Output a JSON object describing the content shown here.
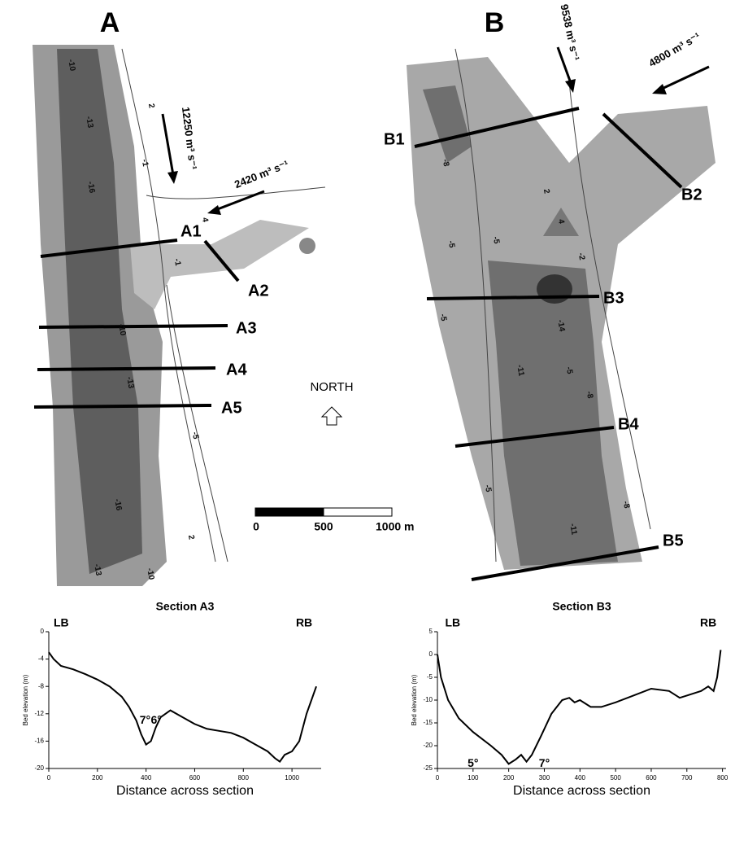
{
  "figure": {
    "map_a": {
      "panel_label": "A",
      "flows": [
        "12250 m³ s⁻¹",
        "2420 m³ s⁻¹"
      ],
      "sections": [
        "A1",
        "A2",
        "A3",
        "A4",
        "A5"
      ],
      "contour_labels": [
        "-10",
        "-13",
        "-16",
        "-1",
        "2",
        "-1",
        "4",
        "-10",
        "-13",
        "-5",
        "-16",
        "-13",
        "-10",
        "2"
      ]
    },
    "map_b": {
      "panel_label": "B",
      "flows": [
        "9538 m³ s⁻¹",
        "4800 m³ s⁻¹"
      ],
      "sections": [
        "B1",
        "B2",
        "B3",
        "B4",
        "B5"
      ],
      "contour_labels": [
        "-8",
        "-5",
        "2",
        "-5",
        "4",
        "-2",
        "-5",
        "-14",
        "-11",
        "-5",
        "-8",
        "-11",
        "-5",
        "-8"
      ]
    },
    "north": "NORTH",
    "scale": [
      "0",
      "500",
      "1000 m"
    ]
  },
  "chart_data": [
    {
      "type": "line",
      "title": "Section A3",
      "xlabel": "Distance across section",
      "ylabel": "Bed elevation (m)",
      "annotations": [
        "LB",
        "RB",
        "7°",
        "6°"
      ],
      "x": [
        0,
        20,
        50,
        100,
        150,
        200,
        250,
        300,
        330,
        360,
        380,
        400,
        420,
        440,
        460,
        500,
        550,
        600,
        650,
        700,
        750,
        800,
        850,
        900,
        930,
        950,
        970,
        1000,
        1030,
        1060,
        1100
      ],
      "series": [
        {
          "name": "Section A3",
          "color": "#000000",
          "values": [
            -3,
            -4,
            -5,
            -5.5,
            -6.2,
            -7,
            -8,
            -9.5,
            -11,
            -13,
            -15,
            -16.5,
            -16,
            -14,
            -12.5,
            -11.5,
            -12.5,
            -13.5,
            -14.2,
            -14.5,
            -14.8,
            -15.5,
            -16.5,
            -17.5,
            -18.5,
            -19,
            -18,
            -17.5,
            -16,
            -12,
            -8
          ]
        }
      ],
      "xlim": [
        0,
        1120
      ],
      "ylim": [
        -20,
        0
      ],
      "xticks": [
        0,
        200,
        400,
        600,
        800,
        1000
      ],
      "yticks": [
        0,
        -4,
        -8,
        -12,
        -16,
        -20
      ]
    },
    {
      "type": "line",
      "title": "Section B3",
      "xlabel": "Distance across section",
      "ylabel": "Bed elevation (m)",
      "annotations": [
        "LB",
        "RB",
        "5°",
        "7°"
      ],
      "x": [
        0,
        10,
        30,
        60,
        100,
        150,
        180,
        200,
        220,
        235,
        250,
        265,
        290,
        320,
        350,
        370,
        385,
        400,
        430,
        460,
        500,
        550,
        600,
        650,
        680,
        700,
        740,
        760,
        775,
        785,
        795
      ],
      "series": [
        {
          "name": "Section B3",
          "color": "#000000",
          "values": [
            0,
            -5,
            -10,
            -14,
            -17,
            -20,
            -22,
            -24,
            -23,
            -22,
            -23.5,
            -22,
            -18,
            -13,
            -10,
            -9.5,
            -10.5,
            -10,
            -11.5,
            -11.5,
            -10.5,
            -9,
            -7.5,
            -8,
            -9.5,
            -9,
            -8,
            -7,
            -8,
            -5,
            1
          ]
        }
      ],
      "xlim": [
        0,
        810
      ],
      "ylim": [
        -25,
        5
      ],
      "xticks": [
        0,
        100,
        200,
        300,
        400,
        500,
        600,
        700,
        800
      ],
      "yticks": [
        5,
        0,
        -5,
        -10,
        -15,
        -20,
        -25
      ]
    }
  ]
}
